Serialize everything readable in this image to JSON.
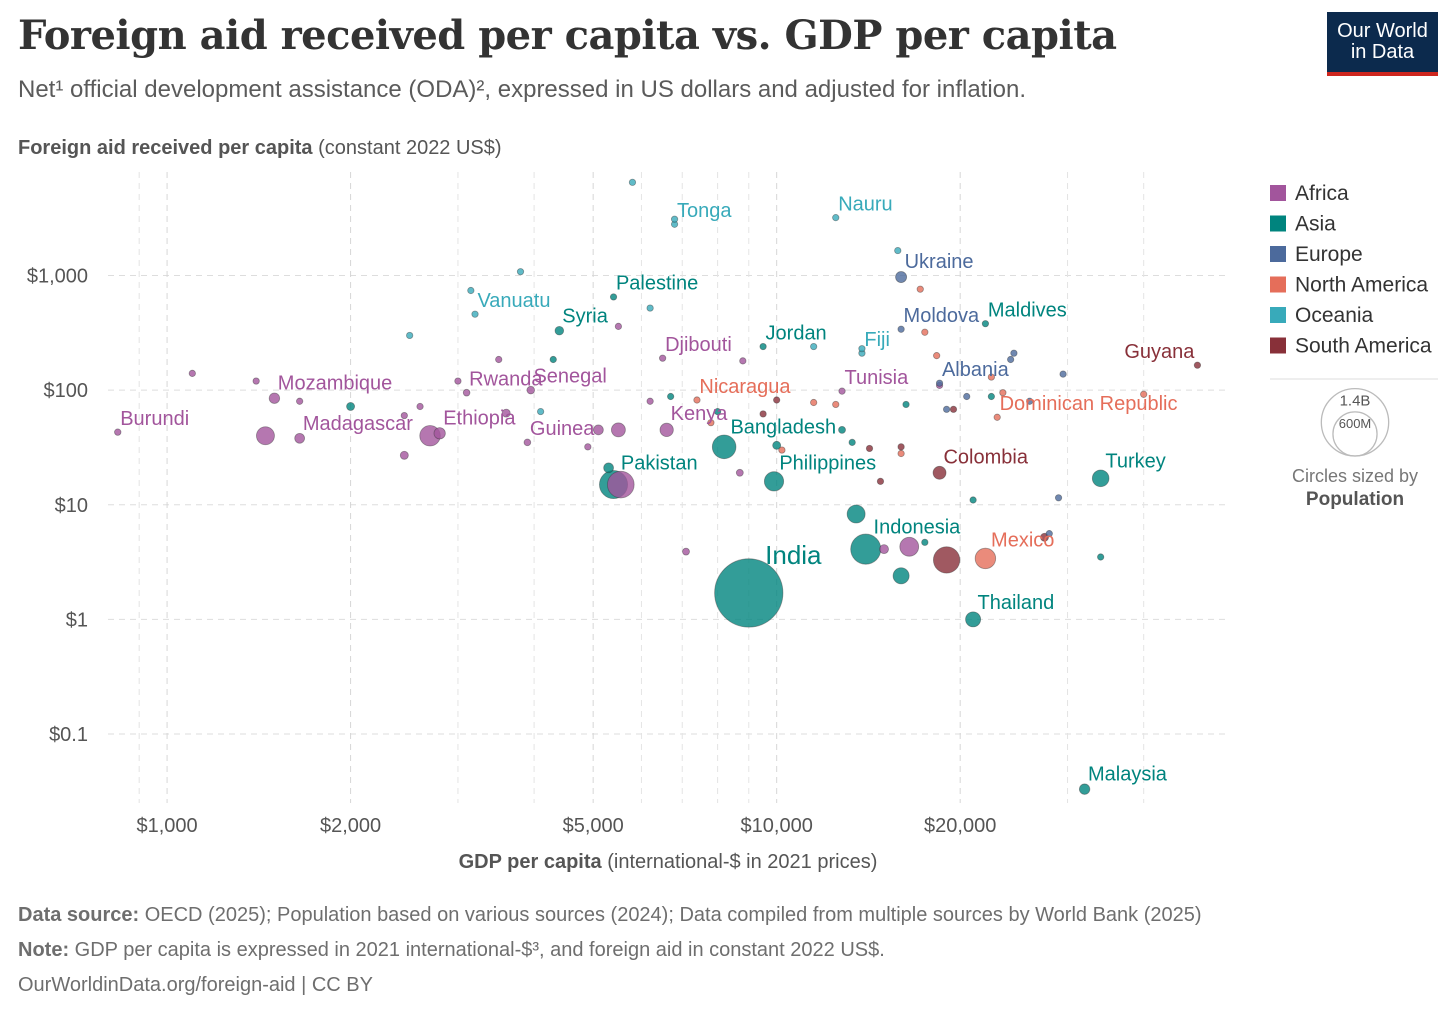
{
  "header": {
    "title": "Foreign aid received per capita vs. GDP per capita",
    "subtitle": "Net¹ official development assistance (ODA)², expressed in US dollars and adjusted for inflation.",
    "logo_line1": "Our World",
    "logo_line2": "in Data"
  },
  "footer": {
    "source_label": "Data source:",
    "source_text": "OECD (2025); Population based on various sources (2024); Data compiled from multiple sources by World Bank (2025)",
    "note_label": "Note:",
    "note_text": "GDP per capita is expressed in 2021 international-$³, and foreign aid in constant 2022 US$.",
    "url": "OurWorldinData.org/foreign-aid | CC BY"
  },
  "chart_data": {
    "type": "scatter",
    "ylabel_bold": "Foreign aid received per capita",
    "ylabel_rest": " (constant 2022 US$)",
    "xlabel_bold": "GDP per capita",
    "xlabel_rest": " (international-$ in 2021 prices)",
    "xscale": "log",
    "yscale": "log",
    "xlim": [
      800,
      55000
    ],
    "ylim": [
      0.025,
      8000
    ],
    "x_ticks": [
      {
        "value": 1000,
        "label": "$1,000"
      },
      {
        "value": 2000,
        "label": "$2,000"
      },
      {
        "value": 5000,
        "label": "$5,000"
      },
      {
        "value": 10000,
        "label": "$10,000"
      },
      {
        "value": 20000,
        "label": "$20,000"
      }
    ],
    "x_minor_gridlines": [
      900,
      3000,
      4000,
      6000,
      7000,
      8000,
      9000,
      30000,
      40000
    ],
    "y_ticks": [
      {
        "value": 0.1,
        "label": "$0.1"
      },
      {
        "value": 1,
        "label": "$1"
      },
      {
        "value": 10,
        "label": "$10"
      },
      {
        "value": 100,
        "label": "$100"
      },
      {
        "value": 1000,
        "label": "$1,000"
      }
    ],
    "grid": true,
    "legend_position": "right",
    "regions": [
      {
        "name": "Africa",
        "color": "#a2559c"
      },
      {
        "name": "Asia",
        "color": "#00847e"
      },
      {
        "name": "Europe",
        "color": "#4c6a9c"
      },
      {
        "name": "North America",
        "color": "#e56e5a"
      },
      {
        "name": "Oceania",
        "color": "#38aaba"
      },
      {
        "name": "South America",
        "color": "#883039"
      }
    ],
    "size_legend": {
      "title_line1": "Circles sized by",
      "title_line2": "Population",
      "labels": [
        "1.4B",
        "600M"
      ],
      "values": [
        1400,
        600
      ]
    },
    "points": [
      {
        "label": "India",
        "region": "Asia",
        "x": 9000,
        "y": 1.7,
        "pop": 1440
      },
      {
        "label": "Indonesia",
        "region": "Asia",
        "x": 14000,
        "y": 4.1,
        "pop": 280
      },
      {
        "label": "Pakistan",
        "region": "Asia",
        "x": 5400,
        "y": 15,
        "pop": 245
      },
      {
        "label": "",
        "region": "Africa",
        "x": 5550,
        "y": 15,
        "pop": 220
      },
      {
        "label": "Bangladesh",
        "region": "Asia",
        "x": 8200,
        "y": 32,
        "pop": 173
      },
      {
        "label": "",
        "region": "Africa",
        "x": 2700,
        "y": 40,
        "pop": 130
      },
      {
        "label": "Philippines",
        "region": "Asia",
        "x": 9900,
        "y": 16,
        "pop": 115
      },
      {
        "label": "Mexico",
        "region": "North America",
        "x": 22000,
        "y": 3.4,
        "pop": 130
      },
      {
        "label": "",
        "region": "South America",
        "x": 19000,
        "y": 3.3,
        "pop": 215
      },
      {
        "label": "",
        "region": "Africa",
        "x": 16500,
        "y": 4.3,
        "pop": 110
      },
      {
        "label": "",
        "region": "Africa",
        "x": 1450,
        "y": 40,
        "pop": 100
      },
      {
        "label": "",
        "region": "Africa",
        "x": 5500,
        "y": 45,
        "pop": 60
      },
      {
        "label": "Turkey",
        "region": "Asia",
        "x": 34000,
        "y": 17,
        "pop": 86
      },
      {
        "label": "Thailand",
        "region": "Asia",
        "x": 21000,
        "y": 1.0,
        "pop": 70
      },
      {
        "label": "",
        "region": "Asia",
        "x": 13500,
        "y": 8.3,
        "pop": 100
      },
      {
        "label": "Colombia",
        "region": "South America",
        "x": 18500,
        "y": 19,
        "pop": 52
      },
      {
        "label": "",
        "region": "Asia",
        "x": 16000,
        "y": 2.4,
        "pop": 80
      },
      {
        "label": "Malaysia",
        "region": "Asia",
        "x": 32000,
        "y": 0.033,
        "pop": 34
      },
      {
        "label": "Guyana",
        "region": "South America",
        "x": 49000,
        "y": 165,
        "pop": 1
      },
      {
        "label": "Burundi",
        "region": "Africa",
        "x": 830,
        "y": 43,
        "pop": 13
      },
      {
        "label": "Mozambique",
        "region": "Africa",
        "x": 1500,
        "y": 85,
        "pop": 34
      },
      {
        "label": "Madagascar",
        "region": "Africa",
        "x": 1650,
        "y": 38,
        "pop": 30
      },
      {
        "label": "Rwanda",
        "region": "Africa",
        "x": 3100,
        "y": 95,
        "pop": 14
      },
      {
        "label": "Ethiopia",
        "region": "Africa",
        "x": 2800,
        "y": 42,
        "pop": 40
      },
      {
        "label": "Guinea",
        "region": "Africa",
        "x": 3900,
        "y": 35,
        "pop": 14
      },
      {
        "label": "Senegal",
        "region": "Africa",
        "x": 3950,
        "y": 100,
        "pop": 18
      },
      {
        "label": "Kenya",
        "region": "Africa",
        "x": 6600,
        "y": 45,
        "pop": 55
      },
      {
        "label": "Djibouti",
        "region": "Africa",
        "x": 6500,
        "y": 190,
        "pop": 1
      },
      {
        "label": "Tunisia",
        "region": "Africa",
        "x": 12800,
        "y": 98,
        "pop": 12
      },
      {
        "label": "Syria",
        "region": "Asia",
        "x": 4400,
        "y": 330,
        "pop": 23
      },
      {
        "label": "Palestine",
        "region": "Asia",
        "x": 5400,
        "y": 650,
        "pop": 5
      },
      {
        "label": "Jordan",
        "region": "Asia",
        "x": 9500,
        "y": 240,
        "pop": 11
      },
      {
        "label": "Maldives",
        "region": "Asia",
        "x": 22000,
        "y": 380,
        "pop": 0.5
      },
      {
        "label": "Tonga",
        "region": "Oceania",
        "x": 6800,
        "y": 2800,
        "pop": 0.1
      },
      {
        "label": "Nauru",
        "region": "Oceania",
        "x": 12500,
        "y": 3200,
        "pop": 0.01
      },
      {
        "label": "Vanuatu",
        "region": "Oceania",
        "x": 3200,
        "y": 460,
        "pop": 0.3
      },
      {
        "label": "Fiji",
        "region": "Oceania",
        "x": 13800,
        "y": 210,
        "pop": 1
      },
      {
        "label": "Ukraine",
        "region": "Europe",
        "x": 16000,
        "y": 970,
        "pop": 38
      },
      {
        "label": "Moldova",
        "region": "Europe",
        "x": 16000,
        "y": 340,
        "pop": 2.5
      },
      {
        "label": "Albania",
        "region": "Europe",
        "x": 18500,
        "y": 115,
        "pop": 2.8
      },
      {
        "label": "Nicaragua",
        "region": "North America",
        "x": 7400,
        "y": 82,
        "pop": 7
      },
      {
        "label": "Dominican Republic",
        "region": "North America",
        "x": 23000,
        "y": 58,
        "pop": 11
      },
      {
        "label": "",
        "region": "Africa",
        "x": 1100,
        "y": 140,
        "pop": 3
      },
      {
        "label": "",
        "region": "Africa",
        "x": 1400,
        "y": 120,
        "pop": 5
      },
      {
        "label": "",
        "region": "Africa",
        "x": 1650,
        "y": 80,
        "pop": 6
      },
      {
        "label": "",
        "region": "Africa",
        "x": 2450,
        "y": 60,
        "pop": 5
      },
      {
        "label": "",
        "region": "Africa",
        "x": 2600,
        "y": 72,
        "pop": 7
      },
      {
        "label": "",
        "region": "Africa",
        "x": 2450,
        "y": 27,
        "pop": 20
      },
      {
        "label": "",
        "region": "Africa",
        "x": 3500,
        "y": 185,
        "pop": 4
      },
      {
        "label": "",
        "region": "Africa",
        "x": 3600,
        "y": 63,
        "pop": 20
      },
      {
        "label": "",
        "region": "Africa",
        "x": 3000,
        "y": 120,
        "pop": 5
      },
      {
        "label": "",
        "region": "Africa",
        "x": 4900,
        "y": 32,
        "pop": 10
      },
      {
        "label": "",
        "region": "Africa",
        "x": 5100,
        "y": 45,
        "pop": 30
      },
      {
        "label": "",
        "region": "Africa",
        "x": 5500,
        "y": 360,
        "pop": 4
      },
      {
        "label": "",
        "region": "Africa",
        "x": 6200,
        "y": 80,
        "pop": 7
      },
      {
        "label": "",
        "region": "Africa",
        "x": 7100,
        "y": 3.9,
        "pop": 15
      },
      {
        "label": "",
        "region": "Africa",
        "x": 8700,
        "y": 19,
        "pop": 15
      },
      {
        "label": "",
        "region": "Africa",
        "x": 8800,
        "y": 180,
        "pop": 2
      },
      {
        "label": "",
        "region": "Africa",
        "x": 15000,
        "y": 4.1,
        "pop": 25
      },
      {
        "label": "",
        "region": "Africa",
        "x": 18500,
        "y": 110,
        "pop": 3
      },
      {
        "label": "",
        "region": "Asia",
        "x": 2000,
        "y": 72,
        "pop": 20
      },
      {
        "label": "",
        "region": "Asia",
        "x": 4300,
        "y": 185,
        "pop": 3
      },
      {
        "label": "",
        "region": "Asia",
        "x": 5300,
        "y": 21,
        "pop": 30
      },
      {
        "label": "",
        "region": "Asia",
        "x": 6700,
        "y": 88,
        "pop": 4
      },
      {
        "label": "",
        "region": "Asia",
        "x": 8000,
        "y": 65,
        "pop": 3
      },
      {
        "label": "",
        "region": "Asia",
        "x": 10000,
        "y": 33,
        "pop": 20
      },
      {
        "label": "",
        "region": "Asia",
        "x": 12800,
        "y": 45,
        "pop": 15
      },
      {
        "label": "",
        "region": "Asia",
        "x": 13300,
        "y": 35,
        "pop": 8
      },
      {
        "label": "",
        "region": "Asia",
        "x": 16300,
        "y": 75,
        "pop": 3
      },
      {
        "label": "",
        "region": "Asia",
        "x": 17500,
        "y": 4.7,
        "pop": 2
      },
      {
        "label": "",
        "region": "Asia",
        "x": 21000,
        "y": 11,
        "pop": 2
      },
      {
        "label": "",
        "region": "Asia",
        "x": 22500,
        "y": 88,
        "pop": 5
      },
      {
        "label": "",
        "region": "Asia",
        "x": 34000,
        "y": 3.5,
        "pop": 2
      },
      {
        "label": "",
        "region": "Oceania",
        "x": 2500,
        "y": 300,
        "pop": 1
      },
      {
        "label": "",
        "region": "Oceania",
        "x": 3800,
        "y": 1080,
        "pop": 0.5
      },
      {
        "label": "",
        "region": "Oceania",
        "x": 3150,
        "y": 740,
        "pop": 0.5
      },
      {
        "label": "",
        "region": "Oceania",
        "x": 5800,
        "y": 6500,
        "pop": 0.1
      },
      {
        "label": "",
        "region": "Oceania",
        "x": 6200,
        "y": 520,
        "pop": 0.5
      },
      {
        "label": "",
        "region": "Oceania",
        "x": 6800,
        "y": 3100,
        "pop": 0.1
      },
      {
        "label": "",
        "region": "Oceania",
        "x": 11500,
        "y": 240,
        "pop": 0.5
      },
      {
        "label": "",
        "region": "Oceania",
        "x": 13800,
        "y": 230,
        "pop": 0.5
      },
      {
        "label": "",
        "region": "Oceania",
        "x": 15800,
        "y": 1650,
        "pop": 0.5
      },
      {
        "label": "",
        "region": "Oceania",
        "x": 4100,
        "y": 65,
        "pop": 1
      },
      {
        "label": "",
        "region": "North America",
        "x": 7800,
        "y": 52,
        "pop": 2
      },
      {
        "label": "",
        "region": "North America",
        "x": 10200,
        "y": 30,
        "pop": 2
      },
      {
        "label": "",
        "region": "North America",
        "x": 11500,
        "y": 78,
        "pop": 3
      },
      {
        "label": "",
        "region": "North America",
        "x": 12500,
        "y": 75,
        "pop": 2
      },
      {
        "label": "",
        "region": "North America",
        "x": 16000,
        "y": 28,
        "pop": 3
      },
      {
        "label": "",
        "region": "North America",
        "x": 17500,
        "y": 320,
        "pop": 1
      },
      {
        "label": "",
        "region": "North America",
        "x": 17200,
        "y": 760,
        "pop": 1
      },
      {
        "label": "",
        "region": "North America",
        "x": 18300,
        "y": 200,
        "pop": 1
      },
      {
        "label": "",
        "region": "North America",
        "x": 22500,
        "y": 130,
        "pop": 2
      },
      {
        "label": "",
        "region": "North America",
        "x": 23500,
        "y": 95,
        "pop": 2
      },
      {
        "label": "",
        "region": "North America",
        "x": 40000,
        "y": 92,
        "pop": 1
      },
      {
        "label": "",
        "region": "South America",
        "x": 9500,
        "y": 62,
        "pop": 4
      },
      {
        "label": "",
        "region": "South America",
        "x": 10000,
        "y": 82,
        "pop": 12
      },
      {
        "label": "",
        "region": "South America",
        "x": 14800,
        "y": 16,
        "pop": 12
      },
      {
        "label": "",
        "region": "South America",
        "x": 14200,
        "y": 31,
        "pop": 6
      },
      {
        "label": "",
        "region": "South America",
        "x": 16000,
        "y": 32,
        "pop": 2
      },
      {
        "label": "",
        "region": "South America",
        "x": 19500,
        "y": 68,
        "pop": 7
      },
      {
        "label": "",
        "region": "South America",
        "x": 27500,
        "y": 5.2,
        "pop": 20
      },
      {
        "label": "",
        "region": "Europe",
        "x": 19000,
        "y": 68,
        "pop": 3
      },
      {
        "label": "",
        "region": "Europe",
        "x": 20500,
        "y": 88,
        "pop": 3
      },
      {
        "label": "",
        "region": "Europe",
        "x": 24500,
        "y": 210,
        "pop": 2
      },
      {
        "label": "",
        "region": "Europe",
        "x": 24200,
        "y": 185,
        "pop": 1
      },
      {
        "label": "",
        "region": "Europe",
        "x": 29500,
        "y": 138,
        "pop": 2
      },
      {
        "label": "",
        "region": "Europe",
        "x": 29000,
        "y": 11.5,
        "pop": 2
      },
      {
        "label": "",
        "region": "Europe",
        "x": 28000,
        "y": 5.6,
        "pop": 4
      },
      {
        "label": "",
        "region": "Europe",
        "x": 26000,
        "y": 80,
        "pop": 1
      }
    ]
  }
}
